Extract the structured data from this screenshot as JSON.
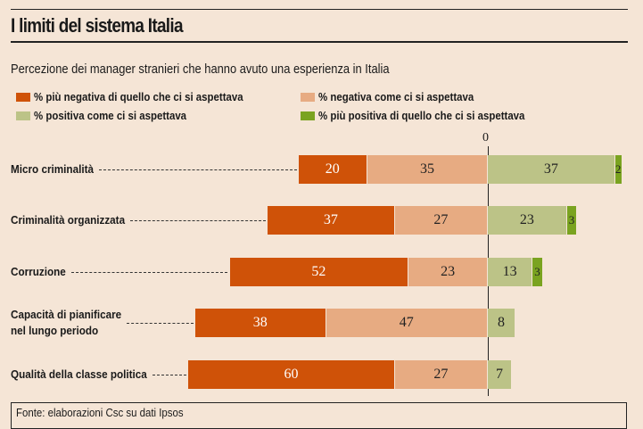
{
  "chart_data": {
    "type": "bar",
    "orientation": "horizontal-diverging",
    "title": "I limiti del sistema Italia",
    "subtitle": "Percezione dei manager stranieri che hanno avuto una esperienza in Italia",
    "zero_label": "0",
    "categories": [
      "Micro criminalità",
      "Criminalità organizzata",
      "Corruzione",
      "Capacità di pianificare nel lungo periodo",
      "Qualità della classe politica"
    ],
    "category_lines": [
      [
        "Micro criminalità"
      ],
      [
        "Criminalità organizzata"
      ],
      [
        "Corruzione"
      ],
      [
        "Capacità di pianificare",
        "nel lungo periodo"
      ],
      [
        "Qualità della classe politica"
      ]
    ],
    "series": [
      {
        "name": "% più negativa di quello che ci si aspettava",
        "color": "#cf5208",
        "side": "negative",
        "text_color": "#ffffff",
        "values": [
          20,
          37,
          52,
          38,
          60
        ]
      },
      {
        "name": "% negativa come ci si aspettava",
        "color": "#e7ab82",
        "side": "negative",
        "text_color": "#222222",
        "values": [
          35,
          27,
          23,
          47,
          27
        ]
      },
      {
        "name": "% positiva come ci si aspettava",
        "color": "#bcc387",
        "side": "positive",
        "text_color": "#222222",
        "values": [
          37,
          23,
          13,
          8,
          7
        ]
      },
      {
        "name": "% più positiva di quello che ci si aspettava",
        "color": "#7aa320",
        "side": "positive",
        "text_color": "#222222",
        "values": [
          2,
          3,
          3,
          0,
          0
        ]
      }
    ],
    "legend_position": "top",
    "source": "Fonte: elaborazioni Csc su dati Ipsos"
  }
}
